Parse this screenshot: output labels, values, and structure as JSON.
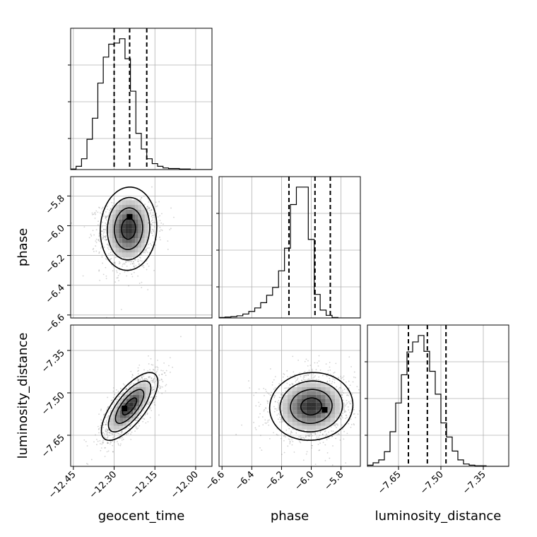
{
  "chart_data": {
    "type": "corner",
    "parameters": [
      "geocent_time",
      "phase",
      "luminosity_distance"
    ],
    "grid": true,
    "colors": {
      "line": "#000000",
      "grid": "#b0b0b0",
      "points": "#7f7f7f"
    },
    "ranges": {
      "geocent_time": [
        -12.46,
        -11.94
      ],
      "phase": [
        -6.62,
        -5.67
      ],
      "luminosity_distance": [
        -7.76,
        -7.26
      ]
    },
    "ticks": {
      "geocent_time": [
        "−12.45",
        "−12.30",
        "−12.15",
        "−12.00"
      ],
      "phase": [
        "−6.6",
        "−6.4",
        "−6.2",
        "−6.0",
        "−5.8"
      ],
      "luminosity_distance": [
        "−7.65",
        "−7.50",
        "−7.35"
      ]
    },
    "tick_values": {
      "geocent_time": [
        -12.45,
        -12.3,
        -12.15,
        -12.0
      ],
      "phase": [
        -6.6,
        -6.4,
        -6.2,
        -6.0,
        -5.8
      ],
      "luminosity_distance": [
        -7.65,
        -7.5,
        -7.35
      ]
    },
    "quantiles": {
      "geocent_time": [
        -12.3,
        -12.243,
        -12.18
      ],
      "phase": [
        -6.15,
        -5.975,
        -5.872
      ],
      "luminosity_distance": [
        -7.615,
        -7.548,
        -7.482
      ]
    },
    "histograms": {
      "geocent_time": {
        "edges_start": -12.46,
        "bin_width": 0.02,
        "counts": [
          0.1,
          0.6,
          2.0,
          5.6,
          9.5,
          16.0,
          20.8,
          23.2,
          23.4,
          24.2,
          20.5,
          14.5,
          6.7,
          3.8,
          2.0,
          1.1,
          0.6,
          0.3,
          0.2,
          0.2,
          0.1,
          0.1,
          0.0,
          0.0,
          0.0,
          0.0
        ]
      },
      "phase": {
        "edges_start": -6.62,
        "bin_width": 0.04,
        "counts": [
          0.1,
          0.2,
          0.3,
          0.5,
          0.9,
          1.5,
          2.3,
          3.5,
          5.2,
          7.0,
          10.8,
          16.0,
          26.0,
          30.0,
          30.0,
          18.0,
          5.4,
          1.8,
          0.6,
          0.1,
          0.0,
          0.0,
          0.0,
          0.0
        ]
      },
      "luminosity_distance": {
        "edges_start": -7.76,
        "bin_width": 0.02,
        "counts": [
          0.2,
          0.6,
          1.1,
          2.5,
          5.9,
          10.8,
          15.6,
          19.5,
          21.2,
          22.3,
          19.6,
          16.2,
          12.3,
          7.4,
          5.0,
          2.6,
          1.1,
          0.4,
          0.2,
          0.1,
          0.1,
          0.0,
          0.0,
          0.0,
          0.0
        ]
      }
    },
    "joint": [
      {
        "x": "geocent_time",
        "y": "phase",
        "mean": [
          -12.247,
          -6.02
        ],
        "std": [
          0.052,
          0.14
        ],
        "corr": 0.05,
        "peak": [
          -12.243,
          -5.94
        ]
      },
      {
        "x": "geocent_time",
        "y": "luminosity_distance",
        "mean": [
          -12.243,
          -7.548
        ],
        "std": [
          0.052,
          0.06
        ],
        "corr": 0.72,
        "peak": [
          -12.262,
          -7.555
        ]
      },
      {
        "x": "phase",
        "y": "luminosity_distance",
        "mean": [
          -6.0,
          -7.548
        ],
        "std": [
          0.14,
          0.06
        ],
        "corr": 0.05,
        "peak": [
          -5.91,
          -7.56
        ]
      }
    ]
  }
}
